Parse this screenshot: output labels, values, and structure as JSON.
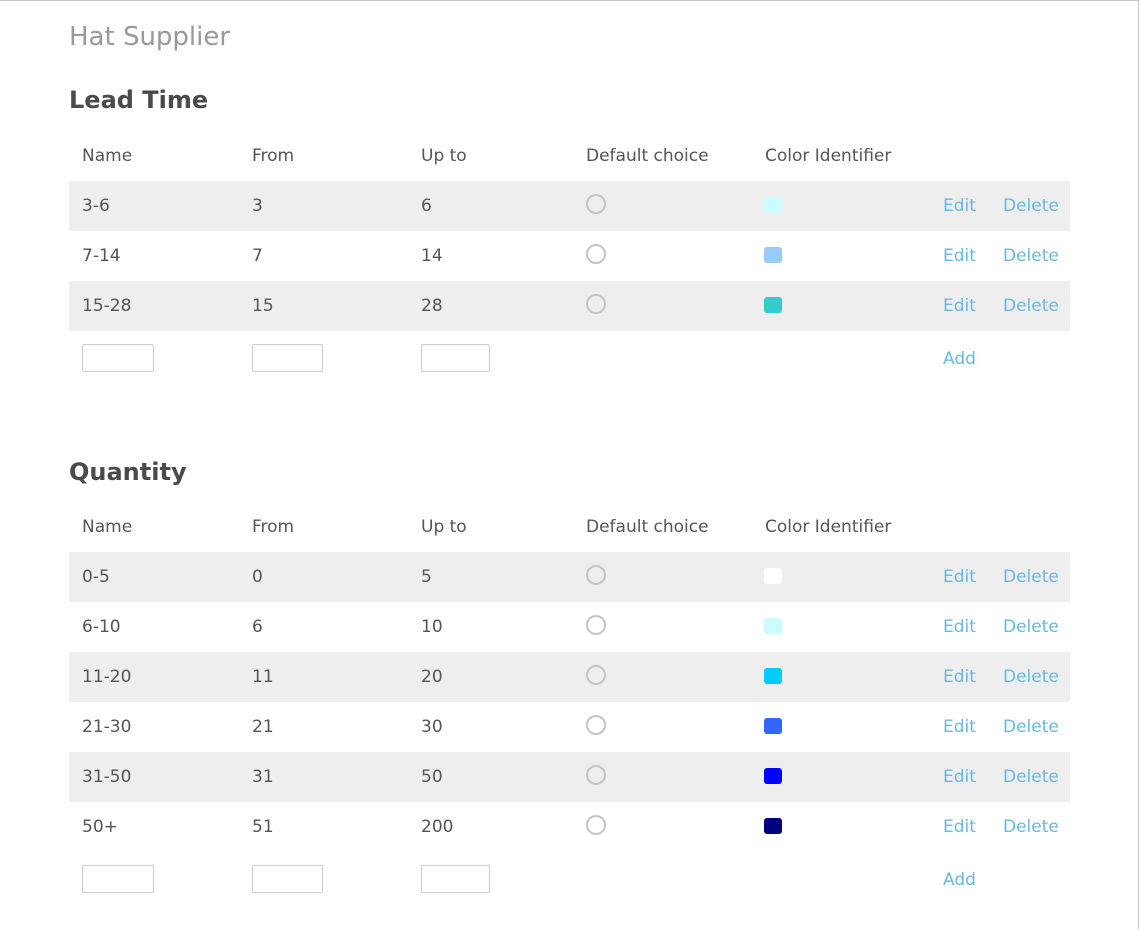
{
  "page": {
    "title": "Hat Supplier"
  },
  "columns": {
    "name": "Name",
    "from": "From",
    "up_to": "Up to",
    "default_choice": "Default choice",
    "color_identifier": "Color Identifier"
  },
  "actions": {
    "edit": "Edit",
    "delete": "Delete",
    "add": "Add"
  },
  "lead_time": {
    "title": "Lead Time",
    "rows": [
      {
        "name": "3-6",
        "from": "3",
        "up_to": "6",
        "default": false,
        "color": "#ccfcff"
      },
      {
        "name": "7-14",
        "from": "7",
        "up_to": "14",
        "default": false,
        "color": "#99ccfa"
      },
      {
        "name": "15-28",
        "from": "15",
        "up_to": "28",
        "default": false,
        "color": "#33cccc"
      }
    ]
  },
  "quantity": {
    "title": "Quantity",
    "rows": [
      {
        "name": "0-5",
        "from": "0",
        "up_to": "5",
        "default": false,
        "color": "#ffffff"
      },
      {
        "name": "6-10",
        "from": "6",
        "up_to": "10",
        "default": false,
        "color": "#ccfcff"
      },
      {
        "name": "11-20",
        "from": "11",
        "up_to": "20",
        "default": false,
        "color": "#00ccff"
      },
      {
        "name": "21-30",
        "from": "21",
        "up_to": "30",
        "default": false,
        "color": "#3366ff"
      },
      {
        "name": "31-50",
        "from": "31",
        "up_to": "50",
        "default": false,
        "color": "#0000ff"
      },
      {
        "name": "50+",
        "from": "51",
        "up_to": "200",
        "default": false,
        "color": "#000080"
      }
    ]
  }
}
